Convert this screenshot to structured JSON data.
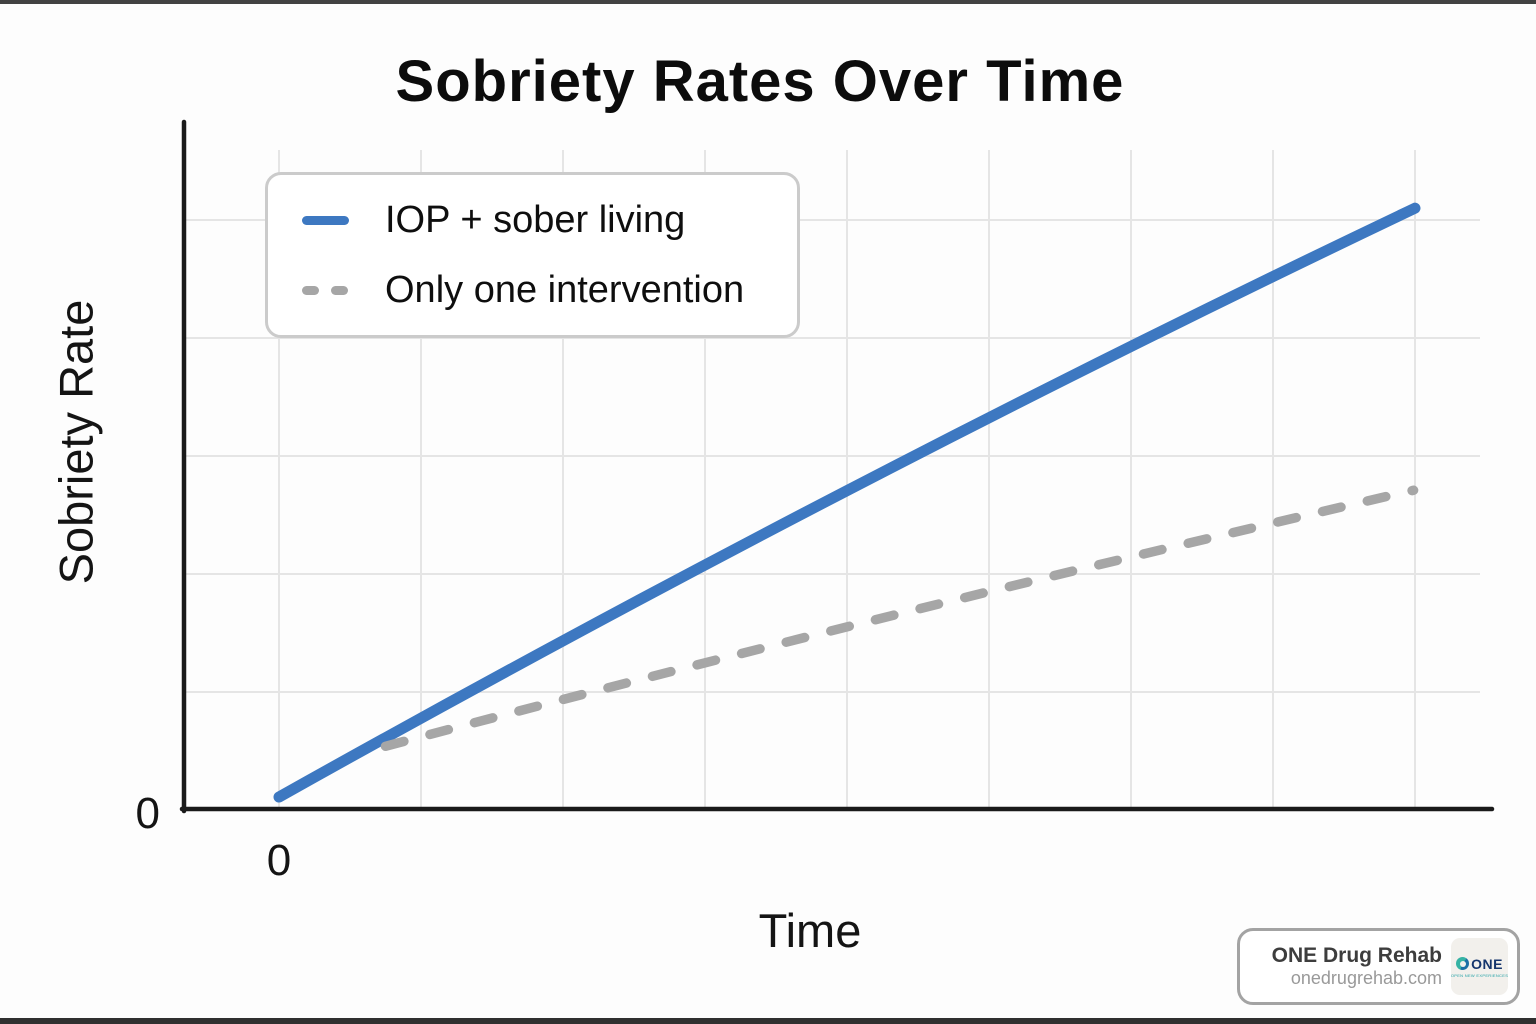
{
  "title": "Sobriety Rates Over Time",
  "chart_data": {
    "type": "line",
    "title": "Sobriety Rates Over Time",
    "xlabel": "Time",
    "ylabel": "Sobriety Rate",
    "x_tick_labels": [
      "0"
    ],
    "y_tick_labels": [
      "0"
    ],
    "grid": true,
    "legend_position": "upper-left",
    "axis_note": "only the origin is labeled; values are in arbitrary units read from gridlines",
    "x_range_units": [
      0,
      8.5
    ],
    "y_range_units": [
      0,
      5.8
    ],
    "series": [
      {
        "name": "IOP + sober living",
        "line_style": "solid",
        "color": "#3d78c1",
        "points": [
          [
            0,
            0.11
          ],
          [
            8.0,
            5.1
          ]
        ]
      },
      {
        "name": "Only one intervention",
        "line_style": "dashed",
        "color": "#a6a6a6",
        "points": [
          [
            0.75,
            0.54
          ],
          [
            7.99,
            2.71
          ]
        ]
      }
    ]
  },
  "origin": {
    "x_label": "0",
    "y_label": "0"
  },
  "watermark": {
    "title": "ONE Drug Rehab",
    "subtitle": "onedrugrehab.com",
    "logo_word": "ONE",
    "logo_tagline": "OPEN NEW EXPERIENCES"
  },
  "style": {
    "accent_blue": "#3d78c1",
    "dash_gray": "#a6a6a6",
    "grid_color": "#e5e5e5",
    "axis_color": "#1a1a1a"
  }
}
